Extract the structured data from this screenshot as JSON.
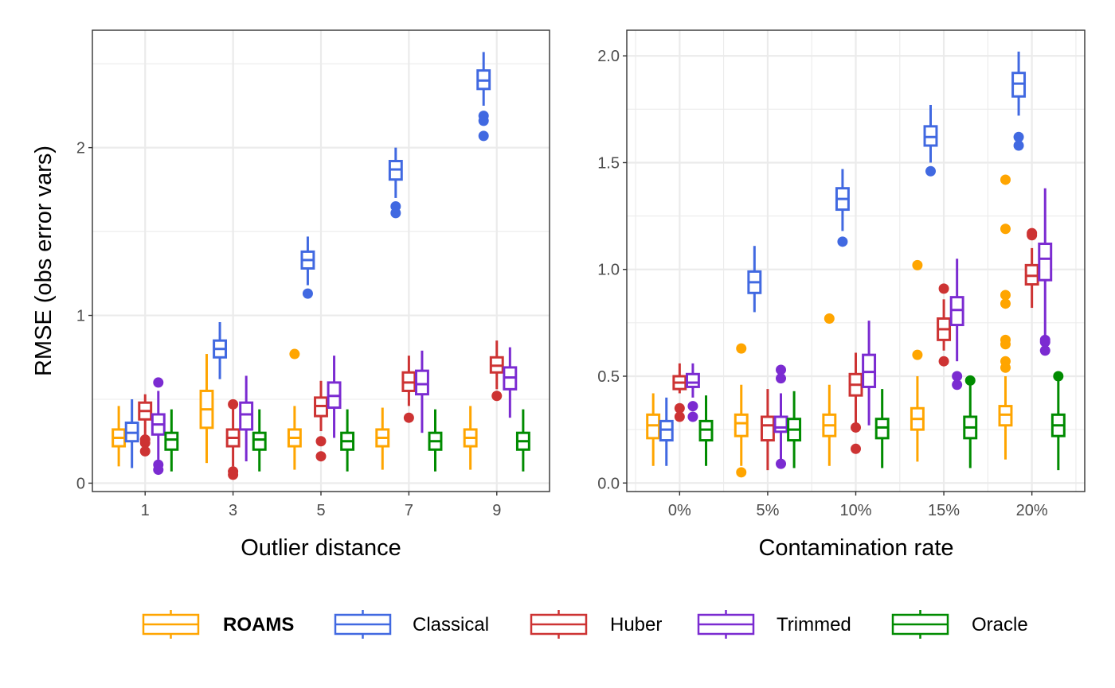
{
  "chart_data": [
    {
      "type": "boxplot",
      "panel": "left",
      "xlabel": "Outlier distance",
      "ylabel": "RMSE (obs error vars)",
      "categories": [
        "1",
        "3",
        "5",
        "7",
        "9"
      ],
      "ylim": [
        -0.05,
        2.7
      ],
      "yticks": [
        0,
        1,
        2
      ],
      "ytick_labels": [
        "0",
        "1",
        "2"
      ],
      "grid": true,
      "series": [
        {
          "name": "ROAMS",
          "boxes": [
            {
              "whislo": 0.1,
              "q1": 0.22,
              "med": 0.27,
              "q3": 0.32,
              "whishi": 0.46,
              "fliers": []
            },
            {
              "whislo": 0.12,
              "q1": 0.33,
              "med": 0.44,
              "q3": 0.55,
              "whishi": 0.77,
              "fliers": []
            },
            {
              "whislo": 0.08,
              "q1": 0.22,
              "med": 0.27,
              "q3": 0.32,
              "whishi": 0.46,
              "fliers": [
                0.77
              ]
            },
            {
              "whislo": 0.08,
              "q1": 0.22,
              "med": 0.27,
              "q3": 0.32,
              "whishi": 0.45,
              "fliers": []
            },
            {
              "whislo": 0.08,
              "q1": 0.22,
              "med": 0.27,
              "q3": 0.32,
              "whishi": 0.46,
              "fliers": []
            }
          ]
        },
        {
          "name": "Classical",
          "boxes": [
            {
              "whislo": 0.09,
              "q1": 0.25,
              "med": 0.3,
              "q3": 0.36,
              "whishi": 0.5,
              "fliers": []
            },
            {
              "whislo": 0.62,
              "q1": 0.75,
              "med": 0.8,
              "q3": 0.85,
              "whishi": 0.96,
              "fliers": []
            },
            {
              "whislo": 1.18,
              "q1": 1.28,
              "med": 1.33,
              "q3": 1.38,
              "whishi": 1.47,
              "fliers": [
                1.13
              ]
            },
            {
              "whislo": 1.7,
              "q1": 1.81,
              "med": 1.87,
              "q3": 1.92,
              "whishi": 2.0,
              "fliers": [
                1.65,
                1.61
              ]
            },
            {
              "whislo": 2.25,
              "q1": 2.35,
              "med": 2.4,
              "q3": 2.46,
              "whishi": 2.57,
              "fliers": [
                2.19,
                2.16,
                2.07
              ]
            }
          ]
        },
        {
          "name": "Huber",
          "boxes": [
            {
              "whislo": 0.27,
              "q1": 0.38,
              "med": 0.43,
              "q3": 0.48,
              "whishi": 0.53,
              "fliers": [
                0.26,
                0.24,
                0.19
              ]
            },
            {
              "whislo": 0.1,
              "q1": 0.22,
              "med": 0.27,
              "q3": 0.32,
              "whishi": 0.45,
              "fliers": [
                0.47,
                0.07,
                0.05
              ]
            },
            {
              "whislo": 0.31,
              "q1": 0.4,
              "med": 0.46,
              "q3": 0.51,
              "whishi": 0.61,
              "fliers": [
                0.25,
                0.16
              ]
            },
            {
              "whislo": 0.46,
              "q1": 0.55,
              "med": 0.6,
              "q3": 0.66,
              "whishi": 0.76,
              "fliers": [
                0.39
              ]
            },
            {
              "whislo": 0.56,
              "q1": 0.66,
              "med": 0.7,
              "q3": 0.75,
              "whishi": 0.85,
              "fliers": [
                0.52
              ]
            }
          ]
        },
        {
          "name": "Trimmed",
          "boxes": [
            {
              "whislo": 0.14,
              "q1": 0.29,
              "med": 0.35,
              "q3": 0.41,
              "whishi": 0.55,
              "fliers": [
                0.6,
                0.11,
                0.08
              ]
            },
            {
              "whislo": 0.13,
              "q1": 0.32,
              "med": 0.41,
              "q3": 0.48,
              "whishi": 0.64,
              "fliers": []
            },
            {
              "whislo": 0.27,
              "q1": 0.45,
              "med": 0.52,
              "q3": 0.6,
              "whishi": 0.76,
              "fliers": []
            },
            {
              "whislo": 0.3,
              "q1": 0.53,
              "med": 0.59,
              "q3": 0.67,
              "whishi": 0.79,
              "fliers": []
            },
            {
              "whislo": 0.39,
              "q1": 0.56,
              "med": 0.63,
              "q3": 0.69,
              "whishi": 0.81,
              "fliers": []
            }
          ]
        },
        {
          "name": "Oracle",
          "boxes": [
            {
              "whislo": 0.07,
              "q1": 0.2,
              "med": 0.26,
              "q3": 0.3,
              "whishi": 0.44,
              "fliers": []
            },
            {
              "whislo": 0.07,
              "q1": 0.2,
              "med": 0.26,
              "q3": 0.3,
              "whishi": 0.44,
              "fliers": []
            },
            {
              "whislo": 0.07,
              "q1": 0.2,
              "med": 0.25,
              "q3": 0.3,
              "whishi": 0.44,
              "fliers": []
            },
            {
              "whislo": 0.07,
              "q1": 0.2,
              "med": 0.25,
              "q3": 0.3,
              "whishi": 0.44,
              "fliers": []
            },
            {
              "whislo": 0.07,
              "q1": 0.2,
              "med": 0.25,
              "q3": 0.3,
              "whishi": 0.44,
              "fliers": []
            }
          ]
        }
      ]
    },
    {
      "type": "boxplot",
      "panel": "right",
      "xlabel": "Contamination rate",
      "ylabel": "",
      "categories": [
        "0%",
        "5%",
        "10%",
        "15%",
        "20%"
      ],
      "ylim": [
        -0.04,
        2.12
      ],
      "yticks": [
        0.0,
        0.5,
        1.0,
        1.5,
        2.0
      ],
      "ytick_labels": [
        "0.0",
        "0.5",
        "1.0",
        "1.5",
        "2.0"
      ],
      "grid": true,
      "series": [
        {
          "name": "ROAMS",
          "boxes": [
            {
              "whislo": 0.08,
              "q1": 0.21,
              "med": 0.27,
              "q3": 0.32,
              "whishi": 0.42,
              "fliers": []
            },
            {
              "whislo": 0.08,
              "q1": 0.22,
              "med": 0.28,
              "q3": 0.32,
              "whishi": 0.46,
              "fliers": [
                0.63,
                0.05
              ]
            },
            {
              "whislo": 0.08,
              "q1": 0.22,
              "med": 0.27,
              "q3": 0.32,
              "whishi": 0.46,
              "fliers": [
                0.77
              ]
            },
            {
              "whislo": 0.1,
              "q1": 0.25,
              "med": 0.3,
              "q3": 0.35,
              "whishi": 0.5,
              "fliers": [
                1.02,
                0.6
              ]
            },
            {
              "whislo": 0.11,
              "q1": 0.27,
              "med": 0.32,
              "q3": 0.36,
              "whishi": 0.5,
              "fliers": [
                1.42,
                1.19,
                0.88,
                0.84,
                0.67,
                0.65,
                0.57,
                0.54
              ]
            }
          ]
        },
        {
          "name": "Classical",
          "boxes": [
            {
              "whislo": 0.08,
              "q1": 0.2,
              "med": 0.25,
              "q3": 0.29,
              "whishi": 0.4,
              "fliers": []
            },
            {
              "whislo": 0.8,
              "q1": 0.89,
              "med": 0.94,
              "q3": 0.99,
              "whishi": 1.11,
              "fliers": []
            },
            {
              "whislo": 1.18,
              "q1": 1.28,
              "med": 1.33,
              "q3": 1.38,
              "whishi": 1.47,
              "fliers": [
                1.13
              ]
            },
            {
              "whislo": 1.5,
              "q1": 1.58,
              "med": 1.62,
              "q3": 1.67,
              "whishi": 1.77,
              "fliers": [
                1.46
              ]
            },
            {
              "whislo": 1.72,
              "q1": 1.81,
              "med": 1.87,
              "q3": 1.92,
              "whishi": 2.02,
              "fliers": [
                1.62,
                1.58
              ]
            }
          ]
        },
        {
          "name": "Huber",
          "boxes": [
            {
              "whislo": 0.42,
              "q1": 0.44,
              "med": 0.47,
              "q3": 0.5,
              "whishi": 0.56,
              "fliers": [
                0.35,
                0.31
              ]
            },
            {
              "whislo": 0.06,
              "q1": 0.2,
              "med": 0.27,
              "q3": 0.31,
              "whishi": 0.44,
              "fliers": []
            },
            {
              "whislo": 0.27,
              "q1": 0.41,
              "med": 0.46,
              "q3": 0.51,
              "whishi": 0.61,
              "fliers": [
                0.26,
                0.16
              ]
            },
            {
              "whislo": 0.62,
              "q1": 0.67,
              "med": 0.72,
              "q3": 0.77,
              "whishi": 0.86,
              "fliers": [
                0.91,
                0.57
              ]
            },
            {
              "whislo": 0.82,
              "q1": 0.93,
              "med": 0.97,
              "q3": 1.02,
              "whishi": 1.1,
              "fliers": [
                1.17,
                1.16
              ]
            }
          ]
        },
        {
          "name": "Trimmed",
          "boxes": [
            {
              "whislo": 0.4,
              "q1": 0.45,
              "med": 0.47,
              "q3": 0.51,
              "whishi": 0.56,
              "fliers": [
                0.36,
                0.31
              ]
            },
            {
              "whislo": 0.1,
              "q1": 0.24,
              "med": 0.26,
              "q3": 0.31,
              "whishi": 0.42,
              "fliers": [
                0.53,
                0.49,
                0.09
              ]
            },
            {
              "whislo": 0.27,
              "q1": 0.45,
              "med": 0.52,
              "q3": 0.6,
              "whishi": 0.76,
              "fliers": []
            },
            {
              "whislo": 0.57,
              "q1": 0.74,
              "med": 0.81,
              "q3": 0.87,
              "whishi": 1.05,
              "fliers": [
                0.5,
                0.46
              ]
            },
            {
              "whislo": 0.69,
              "q1": 0.95,
              "med": 1.05,
              "q3": 1.12,
              "whishi": 1.38,
              "fliers": [
                0.67,
                0.66,
                0.62
              ]
            }
          ]
        },
        {
          "name": "Oracle",
          "boxes": [
            {
              "whislo": 0.08,
              "q1": 0.2,
              "med": 0.25,
              "q3": 0.29,
              "whishi": 0.41,
              "fliers": []
            },
            {
              "whislo": 0.07,
              "q1": 0.2,
              "med": 0.25,
              "q3": 0.3,
              "whishi": 0.43,
              "fliers": []
            },
            {
              "whislo": 0.07,
              "q1": 0.21,
              "med": 0.26,
              "q3": 0.3,
              "whishi": 0.44,
              "fliers": []
            },
            {
              "whislo": 0.07,
              "q1": 0.21,
              "med": 0.26,
              "q3": 0.31,
              "whishi": 0.48,
              "fliers": [
                0.48
              ]
            },
            {
              "whislo": 0.06,
              "q1": 0.22,
              "med": 0.27,
              "q3": 0.32,
              "whishi": 0.48,
              "fliers": [
                0.5
              ]
            }
          ]
        }
      ]
    }
  ],
  "legend": {
    "position": "bottom",
    "items": [
      {
        "label": "ROAMS",
        "color": "#FFA500",
        "bold": true
      },
      {
        "label": "Classical",
        "color": "#4169E1",
        "bold": false
      },
      {
        "label": "Huber",
        "color": "#CD3333",
        "bold": false
      },
      {
        "label": "Trimmed",
        "color": "#7B2BD1",
        "bold": false
      },
      {
        "label": "Oracle",
        "color": "#008B00",
        "bold": false
      }
    ]
  },
  "colors": {
    "grid": "#EBEBEB",
    "panel_border": "#333333",
    "tick_text": "#4D4D4D"
  }
}
